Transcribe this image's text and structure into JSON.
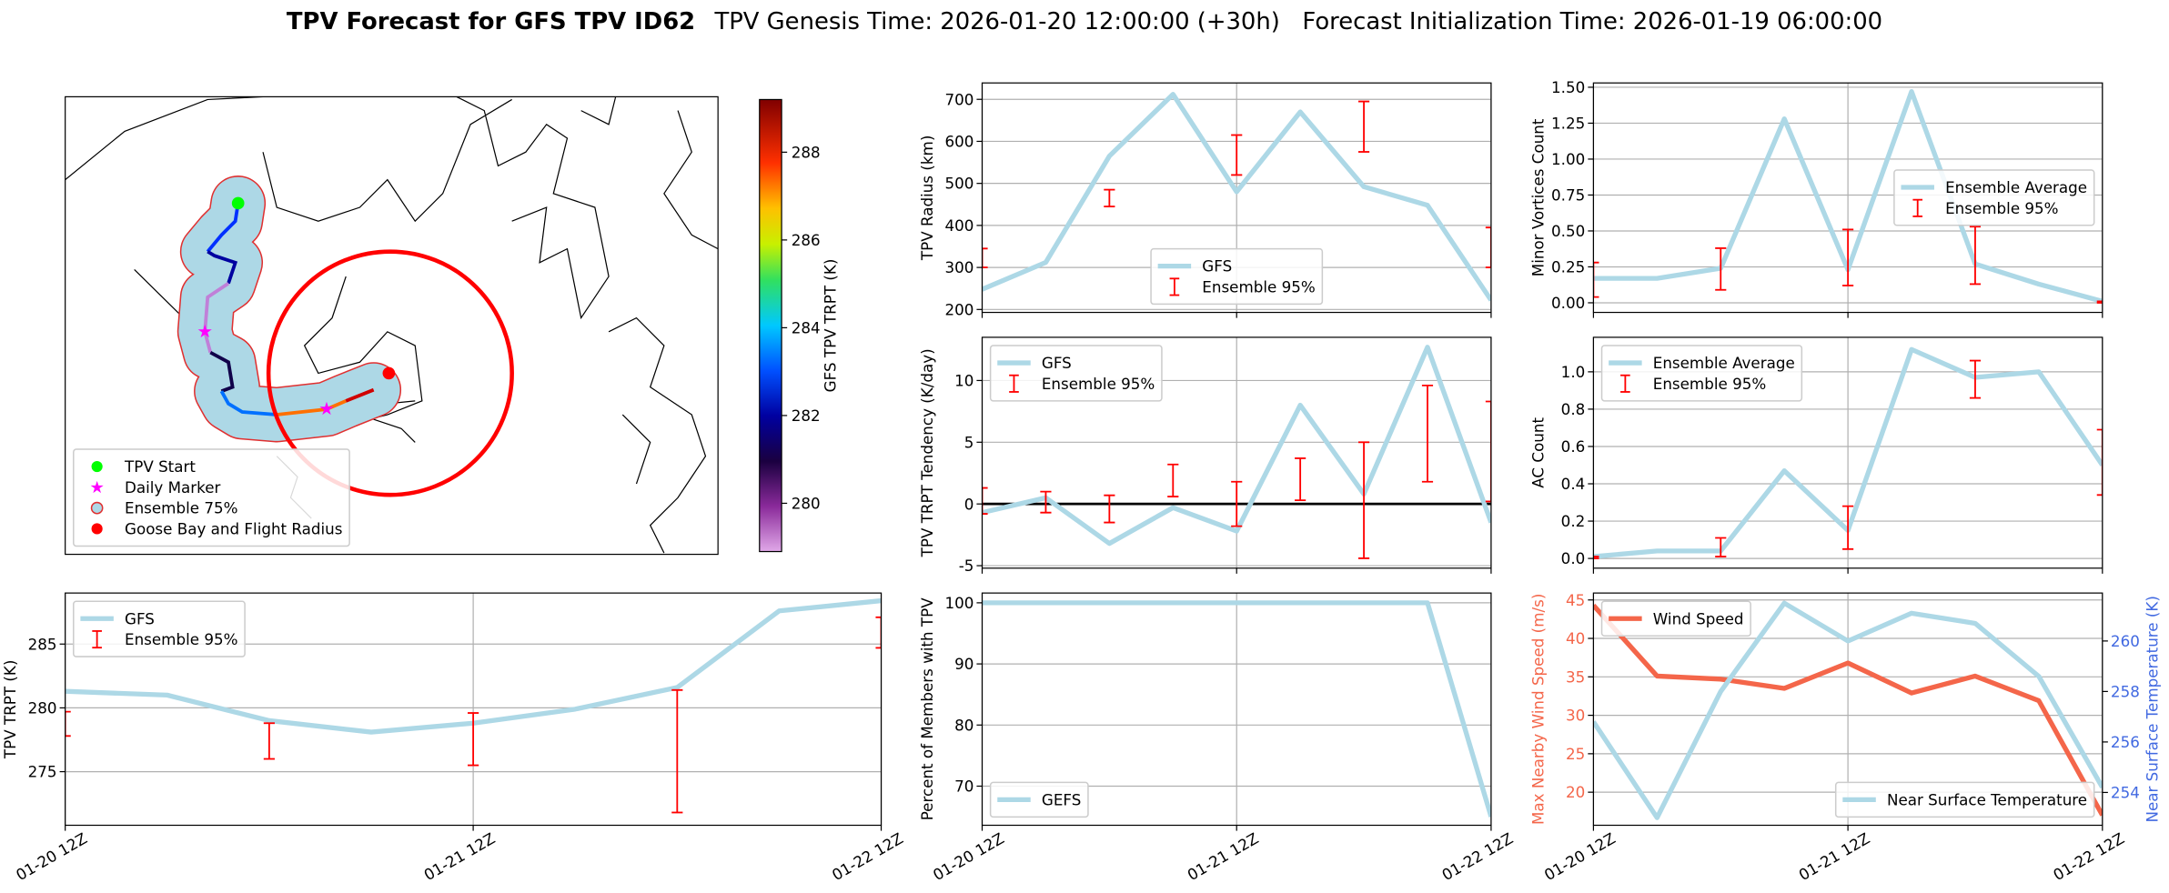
{
  "title": {
    "main": "TPV Forecast for GFS TPV ID62",
    "detail": "TPV Genesis Time: 2026-01-20 12:00:00 (+30h)   Forecast Initialization Time: 2026-01-19 06:00:00"
  },
  "chart_data": [
    {
      "type": "map",
      "legend": "lower left",
      "series": [
        {
          "name": "TPV Start",
          "color": "#00ff00"
        },
        {
          "name": "Daily Marker",
          "color": "#ff00ff"
        },
        {
          "name": "Ensemble 75%",
          "color": "#add8e6"
        },
        {
          "name": "Goose Bay and Flight Radius",
          "color": "#ff0000"
        }
      ],
      "colorbar": {
        "label": "GFS TPV TRPT (K)",
        "lim": [
          278.9,
          289.2
        ],
        "ticks": [
          280,
          282,
          284,
          286,
          288
        ]
      }
    },
    {
      "type": "line",
      "ylabel": "TPV Radius (km)",
      "grid": true,
      "legend": "lower center",
      "x": [
        0,
        6,
        12,
        18,
        24,
        30,
        36,
        42,
        48
      ],
      "xlim": [
        0,
        48
      ],
      "xticks": [
        0,
        24,
        48
      ],
      "ylim": [
        193,
        739
      ],
      "yticks": [
        200,
        300,
        400,
        500,
        600,
        700
      ],
      "series": [
        {
          "name": "GFS",
          "color": "#add8e6",
          "values": [
            248,
            312,
            565,
            712,
            480,
            670,
            492,
            448,
            222
          ]
        },
        {
          "name": "Ensemble 95%",
          "color": "#ff0000",
          "kind": "errorbar",
          "x": [
            0,
            12,
            24,
            36,
            48
          ],
          "low": [
            300,
            445,
            520,
            575,
            300
          ],
          "high": [
            345,
            485,
            615,
            695,
            395
          ]
        }
      ]
    },
    {
      "type": "line",
      "ylabel": "TPV TRPT Tendency (K/day)",
      "grid": true,
      "legend": "upper left",
      "hline": 0,
      "x": [
        0,
        6,
        12,
        18,
        24,
        30,
        36,
        42,
        48
      ],
      "xlim": [
        0,
        48
      ],
      "xticks": [
        0,
        24,
        48
      ],
      "ylim": [
        -5.2,
        13.5
      ],
      "yticks": [
        -5,
        0,
        5,
        10
      ],
      "series": [
        {
          "name": "GFS",
          "color": "#add8e6",
          "values": [
            -0.7,
            0.5,
            -3.2,
            -0.3,
            -2.2,
            8,
            0.8,
            12.7,
            -1.5
          ]
        },
        {
          "name": "Ensemble 95%",
          "color": "#ff0000",
          "kind": "errorbar",
          "x": [
            0,
            6,
            12,
            18,
            24,
            30,
            36,
            42,
            48
          ],
          "low": [
            -0.8,
            -0.7,
            -1.5,
            0.6,
            -1.8,
            0.3,
            -4.4,
            1.8,
            0.2
          ],
          "high": [
            1.3,
            1.0,
            0.7,
            3.2,
            1.8,
            3.7,
            5.0,
            9.6,
            8.3
          ]
        }
      ]
    },
    {
      "type": "line",
      "ylabel": "TPV TRPT (K)",
      "grid": true,
      "legend": "upper left",
      "x": [
        0,
        6,
        12,
        18,
        24,
        30,
        36,
        42,
        48
      ],
      "xlim": [
        0,
        48
      ],
      "xticks": [
        {
          "value": 0,
          "label": "01-20 12Z"
        },
        {
          "value": 24,
          "label": "01-21 12Z"
        },
        {
          "value": 48,
          "label": "01-22 12Z"
        }
      ],
      "ylim": [
        270.8,
        289.0
      ],
      "yticks": [
        275,
        280,
        285
      ],
      "series": [
        {
          "name": "GFS",
          "color": "#add8e6",
          "values": [
            281.3,
            281.0,
            279.0,
            278.1,
            278.8,
            279.9,
            281.6,
            287.6,
            288.4
          ]
        },
        {
          "name": "Ensemble 95%",
          "color": "#ff0000",
          "kind": "errorbar",
          "x": [
            0,
            12,
            24,
            36,
            48
          ],
          "low": [
            277.8,
            276.0,
            275.5,
            271.8,
            284.7
          ],
          "high": [
            279.7,
            278.8,
            279.6,
            281.4,
            287.1
          ]
        }
      ]
    },
    {
      "type": "line",
      "ylabel": "Percent of Members with TPV",
      "grid": true,
      "legend": "lower left",
      "x": [
        0,
        6,
        12,
        18,
        24,
        30,
        36,
        42,
        48
      ],
      "xlim": [
        0,
        48
      ],
      "xticks": [
        {
          "value": 0,
          "label": "01-20 12Z"
        },
        {
          "value": 24,
          "label": "01-21 12Z"
        },
        {
          "value": 48,
          "label": "01-22 12Z"
        }
      ],
      "ylim": [
        63.6,
        101.6
      ],
      "yticks": [
        70,
        80,
        90,
        100
      ],
      "series": [
        {
          "name": "GEFS",
          "color": "#add8e6",
          "values": [
            100,
            100,
            100,
            100,
            100,
            100,
            100,
            100,
            65
          ]
        }
      ]
    },
    {
      "type": "line",
      "ylabel": "Minor Vortices Count",
      "grid": true,
      "legend": "center right",
      "x": [
        0,
        6,
        12,
        18,
        24,
        30,
        36,
        42,
        48
      ],
      "xlim": [
        0,
        48
      ],
      "xticks": [
        0,
        24,
        48
      ],
      "ylim": [
        -0.067,
        1.53
      ],
      "yticks": [
        {
          "value": 0,
          "label": "0.00"
        },
        {
          "value": 0.25,
          "label": "0.25"
        },
        {
          "value": 0.5,
          "label": "0.50"
        },
        {
          "value": 0.75,
          "label": "0.75"
        },
        {
          "value": 1,
          "label": "1.00"
        },
        {
          "value": 1.25,
          "label": "1.25"
        },
        {
          "value": 1.5,
          "label": "1.50"
        }
      ],
      "series": [
        {
          "name": "Ensemble Average",
          "color": "#add8e6",
          "values": [
            0.17,
            0.17,
            0.24,
            1.28,
            0.23,
            1.47,
            0.27,
            0.13,
            0.01
          ]
        },
        {
          "name": "Ensemble 95%",
          "color": "#ff0000",
          "kind": "errorbar",
          "x": [
            0,
            12,
            24,
            36,
            48
          ],
          "low": [
            0.04,
            0.09,
            0.12,
            0.13,
            0
          ],
          "high": [
            0.28,
            0.38,
            0.51,
            0.53,
            0.01
          ]
        }
      ]
    },
    {
      "type": "line",
      "ylabel": "AC Count",
      "grid": true,
      "legend": "upper left",
      "x": [
        0,
        6,
        12,
        18,
        24,
        30,
        36,
        42,
        48
      ],
      "xlim": [
        0,
        48
      ],
      "xticks": [
        0,
        24,
        48
      ],
      "ylim": [
        -0.052,
        1.185
      ],
      "yticks": [
        {
          "value": 0,
          "label": "0.0"
        },
        0.2,
        0.4,
        0.6,
        0.8,
        {
          "value": 1,
          "label": "1.0"
        }
      ],
      "series": [
        {
          "name": "Ensemble Average",
          "color": "#add8e6",
          "values": [
            0.01,
            0.04,
            0.04,
            0.47,
            0.15,
            1.12,
            0.97,
            1.0,
            0.5
          ]
        },
        {
          "name": "Ensemble 95%",
          "color": "#ff0000",
          "kind": "errorbar",
          "x": [
            0,
            12,
            24,
            36,
            48
          ],
          "low": [
            0,
            0.01,
            0.05,
            0.86,
            0.34
          ],
          "high": [
            0.01,
            0.11,
            0.28,
            1.06,
            0.69
          ]
        }
      ]
    },
    {
      "type": "line",
      "ylabel": "Max Nearby Wind Speed (m/s)",
      "ycolor": "#f4664a",
      "y2label": "Near Surface Temperature (K)",
      "y2color": "#4169e1",
      "grid": true,
      "legend": "upper left",
      "y2legend": "lower right",
      "x": [
        0,
        6,
        12,
        18,
        24,
        30,
        36,
        42,
        48
      ],
      "xlim": [
        0,
        48
      ],
      "xticks": [
        {
          "value": 0,
          "label": "01-20 12Z"
        },
        {
          "value": 24,
          "label": "01-21 12Z"
        },
        {
          "value": 48,
          "label": "01-22 12Z"
        }
      ],
      "ylim": [
        15.7,
        45.9
      ],
      "yticks": [
        20,
        25,
        30,
        35,
        40,
        45
      ],
      "y2lim": [
        252.7,
        261.9
      ],
      "y2ticks": [
        254,
        256,
        258,
        260
      ],
      "series": [
        {
          "name": "Wind Speed",
          "color": "#f4664a",
          "values": [
            44.3,
            35.1,
            34.7,
            33.5,
            36.8,
            32.9,
            35.1,
            31.9,
            17
          ]
        },
        {
          "name": "Near Surface Temperature",
          "color": "#add8e6",
          "axis": "y2",
          "values": [
            256.8,
            253.0,
            258.0,
            261.5,
            260.0,
            261.1,
            260.7,
            258.6,
            254.2
          ]
        }
      ]
    }
  ]
}
